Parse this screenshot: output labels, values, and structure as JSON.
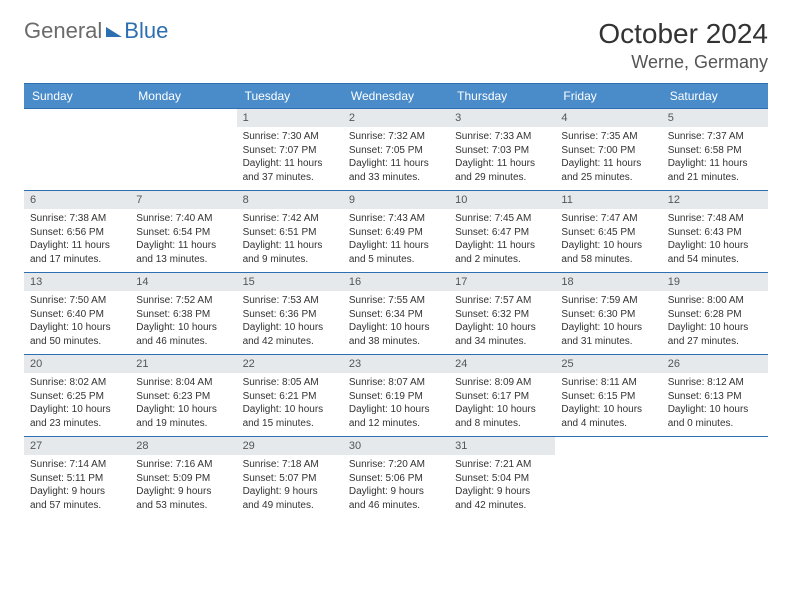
{
  "logo": {
    "part1": "General",
    "part2": "Blue"
  },
  "title": "October 2024",
  "location": "Werne, Germany",
  "weekdays": [
    "Sunday",
    "Monday",
    "Tuesday",
    "Wednesday",
    "Thursday",
    "Friday",
    "Saturday"
  ],
  "styling": {
    "accent_color": "#4a8bc9",
    "border_color": "#2d6fb0",
    "daynum_bg": "#e6e9ec",
    "page_bg": "#ffffff",
    "text_color": "#333333",
    "logo_gray": "#6b6b6b",
    "logo_blue": "#2d6fb0",
    "title_fontsize": 28,
    "location_fontsize": 18,
    "weekday_fontsize": 12,
    "info_fontsize": 10,
    "columns": 7
  },
  "weeks": [
    [
      {
        "day": "",
        "sunrise": "",
        "sunset": "",
        "daylight": ""
      },
      {
        "day": "",
        "sunrise": "",
        "sunset": "",
        "daylight": ""
      },
      {
        "day": "1",
        "sunrise": "Sunrise: 7:30 AM",
        "sunset": "Sunset: 7:07 PM",
        "daylight": "Daylight: 11 hours and 37 minutes."
      },
      {
        "day": "2",
        "sunrise": "Sunrise: 7:32 AM",
        "sunset": "Sunset: 7:05 PM",
        "daylight": "Daylight: 11 hours and 33 minutes."
      },
      {
        "day": "3",
        "sunrise": "Sunrise: 7:33 AM",
        "sunset": "Sunset: 7:03 PM",
        "daylight": "Daylight: 11 hours and 29 minutes."
      },
      {
        "day": "4",
        "sunrise": "Sunrise: 7:35 AM",
        "sunset": "Sunset: 7:00 PM",
        "daylight": "Daylight: 11 hours and 25 minutes."
      },
      {
        "day": "5",
        "sunrise": "Sunrise: 7:37 AM",
        "sunset": "Sunset: 6:58 PM",
        "daylight": "Daylight: 11 hours and 21 minutes."
      }
    ],
    [
      {
        "day": "6",
        "sunrise": "Sunrise: 7:38 AM",
        "sunset": "Sunset: 6:56 PM",
        "daylight": "Daylight: 11 hours and 17 minutes."
      },
      {
        "day": "7",
        "sunrise": "Sunrise: 7:40 AM",
        "sunset": "Sunset: 6:54 PM",
        "daylight": "Daylight: 11 hours and 13 minutes."
      },
      {
        "day": "8",
        "sunrise": "Sunrise: 7:42 AM",
        "sunset": "Sunset: 6:51 PM",
        "daylight": "Daylight: 11 hours and 9 minutes."
      },
      {
        "day": "9",
        "sunrise": "Sunrise: 7:43 AM",
        "sunset": "Sunset: 6:49 PM",
        "daylight": "Daylight: 11 hours and 5 minutes."
      },
      {
        "day": "10",
        "sunrise": "Sunrise: 7:45 AM",
        "sunset": "Sunset: 6:47 PM",
        "daylight": "Daylight: 11 hours and 2 minutes."
      },
      {
        "day": "11",
        "sunrise": "Sunrise: 7:47 AM",
        "sunset": "Sunset: 6:45 PM",
        "daylight": "Daylight: 10 hours and 58 minutes."
      },
      {
        "day": "12",
        "sunrise": "Sunrise: 7:48 AM",
        "sunset": "Sunset: 6:43 PM",
        "daylight": "Daylight: 10 hours and 54 minutes."
      }
    ],
    [
      {
        "day": "13",
        "sunrise": "Sunrise: 7:50 AM",
        "sunset": "Sunset: 6:40 PM",
        "daylight": "Daylight: 10 hours and 50 minutes."
      },
      {
        "day": "14",
        "sunrise": "Sunrise: 7:52 AM",
        "sunset": "Sunset: 6:38 PM",
        "daylight": "Daylight: 10 hours and 46 minutes."
      },
      {
        "day": "15",
        "sunrise": "Sunrise: 7:53 AM",
        "sunset": "Sunset: 6:36 PM",
        "daylight": "Daylight: 10 hours and 42 minutes."
      },
      {
        "day": "16",
        "sunrise": "Sunrise: 7:55 AM",
        "sunset": "Sunset: 6:34 PM",
        "daylight": "Daylight: 10 hours and 38 minutes."
      },
      {
        "day": "17",
        "sunrise": "Sunrise: 7:57 AM",
        "sunset": "Sunset: 6:32 PM",
        "daylight": "Daylight: 10 hours and 34 minutes."
      },
      {
        "day": "18",
        "sunrise": "Sunrise: 7:59 AM",
        "sunset": "Sunset: 6:30 PM",
        "daylight": "Daylight: 10 hours and 31 minutes."
      },
      {
        "day": "19",
        "sunrise": "Sunrise: 8:00 AM",
        "sunset": "Sunset: 6:28 PM",
        "daylight": "Daylight: 10 hours and 27 minutes."
      }
    ],
    [
      {
        "day": "20",
        "sunrise": "Sunrise: 8:02 AM",
        "sunset": "Sunset: 6:25 PM",
        "daylight": "Daylight: 10 hours and 23 minutes."
      },
      {
        "day": "21",
        "sunrise": "Sunrise: 8:04 AM",
        "sunset": "Sunset: 6:23 PM",
        "daylight": "Daylight: 10 hours and 19 minutes."
      },
      {
        "day": "22",
        "sunrise": "Sunrise: 8:05 AM",
        "sunset": "Sunset: 6:21 PM",
        "daylight": "Daylight: 10 hours and 15 minutes."
      },
      {
        "day": "23",
        "sunrise": "Sunrise: 8:07 AM",
        "sunset": "Sunset: 6:19 PM",
        "daylight": "Daylight: 10 hours and 12 minutes."
      },
      {
        "day": "24",
        "sunrise": "Sunrise: 8:09 AM",
        "sunset": "Sunset: 6:17 PM",
        "daylight": "Daylight: 10 hours and 8 minutes."
      },
      {
        "day": "25",
        "sunrise": "Sunrise: 8:11 AM",
        "sunset": "Sunset: 6:15 PM",
        "daylight": "Daylight: 10 hours and 4 minutes."
      },
      {
        "day": "26",
        "sunrise": "Sunrise: 8:12 AM",
        "sunset": "Sunset: 6:13 PM",
        "daylight": "Daylight: 10 hours and 0 minutes."
      }
    ],
    [
      {
        "day": "27",
        "sunrise": "Sunrise: 7:14 AM",
        "sunset": "Sunset: 5:11 PM",
        "daylight": "Daylight: 9 hours and 57 minutes."
      },
      {
        "day": "28",
        "sunrise": "Sunrise: 7:16 AM",
        "sunset": "Sunset: 5:09 PM",
        "daylight": "Daylight: 9 hours and 53 minutes."
      },
      {
        "day": "29",
        "sunrise": "Sunrise: 7:18 AM",
        "sunset": "Sunset: 5:07 PM",
        "daylight": "Daylight: 9 hours and 49 minutes."
      },
      {
        "day": "30",
        "sunrise": "Sunrise: 7:20 AM",
        "sunset": "Sunset: 5:06 PM",
        "daylight": "Daylight: 9 hours and 46 minutes."
      },
      {
        "day": "31",
        "sunrise": "Sunrise: 7:21 AM",
        "sunset": "Sunset: 5:04 PM",
        "daylight": "Daylight: 9 hours and 42 minutes."
      },
      {
        "day": "",
        "sunrise": "",
        "sunset": "",
        "daylight": ""
      },
      {
        "day": "",
        "sunrise": "",
        "sunset": "",
        "daylight": ""
      }
    ]
  ]
}
